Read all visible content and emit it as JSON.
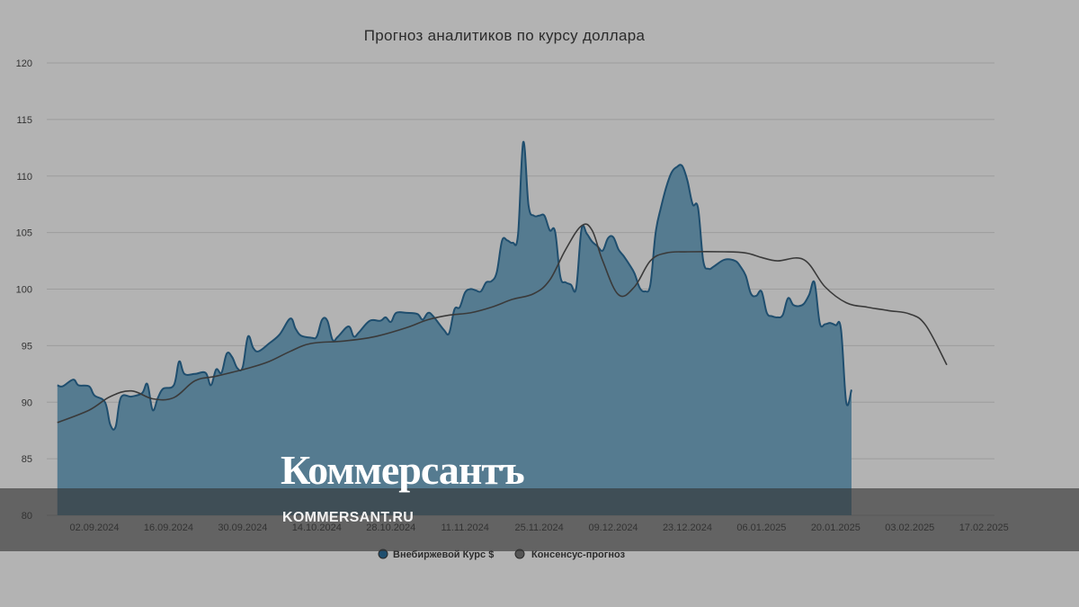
{
  "chart_data": {
    "type": "area",
    "title": "Прогноз аналитиков по курсу доллара",
    "ylim": [
      80,
      120
    ],
    "yticks": [
      80,
      85,
      90,
      95,
      100,
      105,
      110,
      115,
      120
    ],
    "x_start": "2024-08-24",
    "x_end": "2025-02-19",
    "xticks": [
      "02.09.2024",
      "16.09.2024",
      "30.09.2024",
      "14.10.2024",
      "28.10.2024",
      "11.11.2024",
      "25.11.2024",
      "09.12.2024",
      "23.12.2024",
      "06.01.2025",
      "20.01.2025",
      "03.02.2025",
      "17.02.2025"
    ],
    "grid": true,
    "legend_position": "bottom",
    "series": [
      {
        "name": "Внебиржевой Курс $",
        "type": "area",
        "color": "#1f4e6e",
        "fill": "#557b90",
        "points": [
          [
            "2024-08-26",
            91.5
          ],
          [
            "2024-08-27",
            91.4
          ],
          [
            "2024-08-29",
            92.0
          ],
          [
            "2024-08-30",
            91.5
          ],
          [
            "2024-09-01",
            91.4
          ],
          [
            "2024-09-02",
            90.6
          ],
          [
            "2024-09-04",
            90.0
          ],
          [
            "2024-09-05",
            88.0
          ],
          [
            "2024-09-06",
            87.8
          ],
          [
            "2024-09-07",
            90.4
          ],
          [
            "2024-09-09",
            90.5
          ],
          [
            "2024-09-11",
            90.8
          ],
          [
            "2024-09-12",
            91.6
          ],
          [
            "2024-09-13",
            89.3
          ],
          [
            "2024-09-14",
            90.4
          ],
          [
            "2024-09-15",
            91.2
          ],
          [
            "2024-09-17",
            91.5
          ],
          [
            "2024-09-18",
            93.6
          ],
          [
            "2024-09-19",
            92.5
          ],
          [
            "2024-09-21",
            92.5
          ],
          [
            "2024-09-23",
            92.6
          ],
          [
            "2024-09-24",
            91.5
          ],
          [
            "2024-09-25",
            92.9
          ],
          [
            "2024-09-26",
            92.6
          ],
          [
            "2024-09-27",
            94.3
          ],
          [
            "2024-09-28",
            94.0
          ],
          [
            "2024-09-29",
            93.0
          ],
          [
            "2024-09-30",
            93.1
          ],
          [
            "2024-10-01",
            95.8
          ],
          [
            "2024-10-02",
            94.8
          ],
          [
            "2024-10-03",
            94.5
          ],
          [
            "2024-10-05",
            95.2
          ],
          [
            "2024-10-07",
            96.0
          ],
          [
            "2024-10-09",
            97.4
          ],
          [
            "2024-10-10",
            96.5
          ],
          [
            "2024-10-11",
            95.9
          ],
          [
            "2024-10-13",
            95.7
          ],
          [
            "2024-10-14",
            95.8
          ],
          [
            "2024-10-15",
            97.3
          ],
          [
            "2024-10-16",
            97.2
          ],
          [
            "2024-10-17",
            95.5
          ],
          [
            "2024-10-18",
            95.8
          ],
          [
            "2024-10-20",
            96.7
          ],
          [
            "2024-10-21",
            95.8
          ],
          [
            "2024-10-22",
            96.2
          ],
          [
            "2024-10-24",
            97.2
          ],
          [
            "2024-10-26",
            97.2
          ],
          [
            "2024-10-27",
            97.5
          ],
          [
            "2024-10-28",
            97.1
          ],
          [
            "2024-10-29",
            97.9
          ],
          [
            "2024-10-31",
            97.9
          ],
          [
            "2024-11-02",
            97.8
          ],
          [
            "2024-11-03",
            97.3
          ],
          [
            "2024-11-04",
            97.9
          ],
          [
            "2024-11-05",
            97.6
          ],
          [
            "2024-11-07",
            96.4
          ],
          [
            "2024-11-08",
            96.1
          ],
          [
            "2024-11-09",
            98.2
          ],
          [
            "2024-11-10",
            98.4
          ],
          [
            "2024-11-11",
            99.7
          ],
          [
            "2024-11-12",
            100.0
          ],
          [
            "2024-11-13",
            99.9
          ],
          [
            "2024-11-14",
            99.8
          ],
          [
            "2024-11-15",
            100.6
          ],
          [
            "2024-11-16",
            100.7
          ],
          [
            "2024-11-17",
            101.5
          ],
          [
            "2024-11-18",
            104.3
          ],
          [
            "2024-11-19",
            104.3
          ],
          [
            "2024-11-20",
            104.1
          ],
          [
            "2024-11-21",
            104.8
          ],
          [
            "2024-11-22",
            113.0
          ],
          [
            "2024-11-23",
            107.4
          ],
          [
            "2024-11-24",
            106.5
          ],
          [
            "2024-11-25",
            106.5
          ],
          [
            "2024-11-26",
            106.5
          ],
          [
            "2024-11-27",
            105.2
          ],
          [
            "2024-11-28",
            105.1
          ],
          [
            "2024-11-29",
            101.1
          ],
          [
            "2024-11-30",
            100.6
          ],
          [
            "2024-12-01",
            100.4
          ],
          [
            "2024-12-02",
            100.1
          ],
          [
            "2024-12-03",
            105.3
          ],
          [
            "2024-12-04",
            104.9
          ],
          [
            "2024-12-05",
            104.2
          ],
          [
            "2024-12-06",
            103.8
          ],
          [
            "2024-12-07",
            103.4
          ],
          [
            "2024-12-08",
            104.5
          ],
          [
            "2024-12-09",
            104.6
          ],
          [
            "2024-12-10",
            103.5
          ],
          [
            "2024-12-11",
            102.9
          ],
          [
            "2024-12-12",
            102.2
          ],
          [
            "2024-12-13",
            101.4
          ],
          [
            "2024-12-14",
            100.1
          ],
          [
            "2024-12-15",
            99.8
          ],
          [
            "2024-12-16",
            100.4
          ],
          [
            "2024-12-17",
            105.0
          ],
          [
            "2024-12-18",
            107.2
          ],
          [
            "2024-12-19",
            109.0
          ],
          [
            "2024-12-20",
            110.3
          ],
          [
            "2024-12-21",
            110.8
          ],
          [
            "2024-12-22",
            110.9
          ],
          [
            "2024-12-23",
            109.6
          ],
          [
            "2024-12-24",
            107.5
          ],
          [
            "2024-12-25",
            107.2
          ],
          [
            "2024-12-26",
            102.5
          ],
          [
            "2024-12-27",
            101.8
          ],
          [
            "2024-12-28",
            102.0
          ],
          [
            "2024-12-30",
            102.6
          ],
          [
            "2025-01-01",
            102.5
          ],
          [
            "2025-01-02",
            102.0
          ],
          [
            "2025-01-03",
            101.2
          ],
          [
            "2025-01-04",
            99.6
          ],
          [
            "2025-01-05",
            99.4
          ],
          [
            "2025-01-06",
            99.8
          ],
          [
            "2025-01-07",
            97.9
          ],
          [
            "2025-01-08",
            97.6
          ],
          [
            "2025-01-09",
            97.5
          ],
          [
            "2025-01-10",
            97.7
          ],
          [
            "2025-01-11",
            99.2
          ],
          [
            "2025-01-12",
            98.6
          ],
          [
            "2025-01-13",
            98.5
          ],
          [
            "2025-01-14",
            98.7
          ],
          [
            "2025-01-15",
            99.5
          ],
          [
            "2025-01-16",
            100.6
          ],
          [
            "2025-01-17",
            97.0
          ],
          [
            "2025-01-18",
            96.9
          ],
          [
            "2025-01-19",
            97.0
          ],
          [
            "2025-01-20",
            96.8
          ],
          [
            "2025-01-21",
            96.5
          ],
          [
            "2025-01-22",
            90.0
          ],
          [
            "2025-01-23",
            91.1
          ]
        ]
      },
      {
        "name": "Консенсус-прогноз",
        "type": "line",
        "color": "#3a3a3a",
        "points": [
          [
            "2024-08-26",
            88.2
          ],
          [
            "2024-09-01",
            89.3
          ],
          [
            "2024-09-05",
            90.5
          ],
          [
            "2024-09-09",
            91.0
          ],
          [
            "2024-09-13",
            90.3
          ],
          [
            "2024-09-17",
            90.4
          ],
          [
            "2024-09-21",
            91.9
          ],
          [
            "2024-09-25",
            92.3
          ],
          [
            "2024-10-01",
            93.0
          ],
          [
            "2024-10-05",
            93.6
          ],
          [
            "2024-10-09",
            94.5
          ],
          [
            "2024-10-13",
            95.2
          ],
          [
            "2024-10-19",
            95.4
          ],
          [
            "2024-10-25",
            95.8
          ],
          [
            "2024-10-31",
            96.6
          ],
          [
            "2024-11-04",
            97.3
          ],
          [
            "2024-11-08",
            97.7
          ],
          [
            "2024-11-12",
            97.9
          ],
          [
            "2024-11-16",
            98.4
          ],
          [
            "2024-11-20",
            99.1
          ],
          [
            "2024-11-24",
            99.6
          ],
          [
            "2024-11-27",
            100.8
          ],
          [
            "2024-11-30",
            103.5
          ],
          [
            "2024-12-03",
            105.6
          ],
          [
            "2024-12-05",
            105.2
          ],
          [
            "2024-12-07",
            102.5
          ],
          [
            "2024-12-10",
            99.5
          ],
          [
            "2024-12-13",
            100.2
          ],
          [
            "2024-12-16",
            102.5
          ],
          [
            "2024-12-19",
            103.2
          ],
          [
            "2024-12-23",
            103.3
          ],
          [
            "2024-12-30",
            103.3
          ],
          [
            "2025-01-03",
            103.2
          ],
          [
            "2025-01-06",
            102.8
          ],
          [
            "2025-01-09",
            102.5
          ],
          [
            "2025-01-14",
            102.6
          ],
          [
            "2025-01-18",
            100.2
          ],
          [
            "2025-01-22",
            98.8
          ],
          [
            "2025-01-26",
            98.4
          ],
          [
            "2025-01-30",
            98.1
          ],
          [
            "2025-02-03",
            97.8
          ],
          [
            "2025-02-06",
            96.8
          ],
          [
            "2025-02-10",
            93.3
          ]
        ]
      }
    ]
  },
  "watermark": {
    "logo_text": "Коммерсантъ",
    "url_text": "KOMMERSANT.RU"
  }
}
